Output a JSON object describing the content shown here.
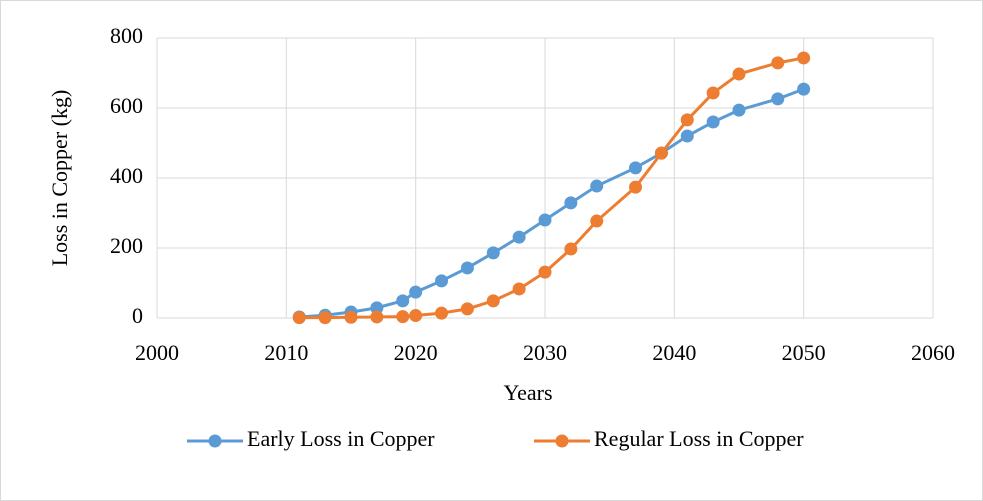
{
  "chart_data": {
    "type": "line",
    "xlabel": "Years",
    "ylabel": "Loss in Copper (kg)",
    "x": [
      2011,
      2013,
      2015,
      2017,
      2019,
      2020,
      2022,
      2024,
      2026,
      2028,
      2030,
      2032,
      2034,
      2037,
      2039,
      2041,
      2043,
      2045,
      2048,
      2050
    ],
    "series": [
      {
        "name": "Early Loss in Copper",
        "color": "#5b9bd5",
        "values": [
          3,
          8,
          17,
          29,
          49,
          74,
          106,
          143,
          186,
          231,
          280,
          329,
          377,
          429,
          471,
          520,
          560,
          594,
          626,
          654
        ]
      },
      {
        "name": "Regular Loss in Copper",
        "color": "#ed7d31",
        "values": [
          1,
          1,
          2,
          3,
          4,
          7,
          14,
          26,
          49,
          83,
          131,
          197,
          277,
          374,
          471,
          566,
          643,
          697,
          729,
          743
        ]
      }
    ],
    "xlim": [
      2000,
      2060
    ],
    "xticks": [
      2000,
      2010,
      2020,
      2030,
      2040,
      2050,
      2060
    ],
    "ylim": [
      0,
      800
    ],
    "yticks": [
      0,
      200,
      400,
      600,
      800
    ],
    "grid": true,
    "legend": "bottom"
  }
}
